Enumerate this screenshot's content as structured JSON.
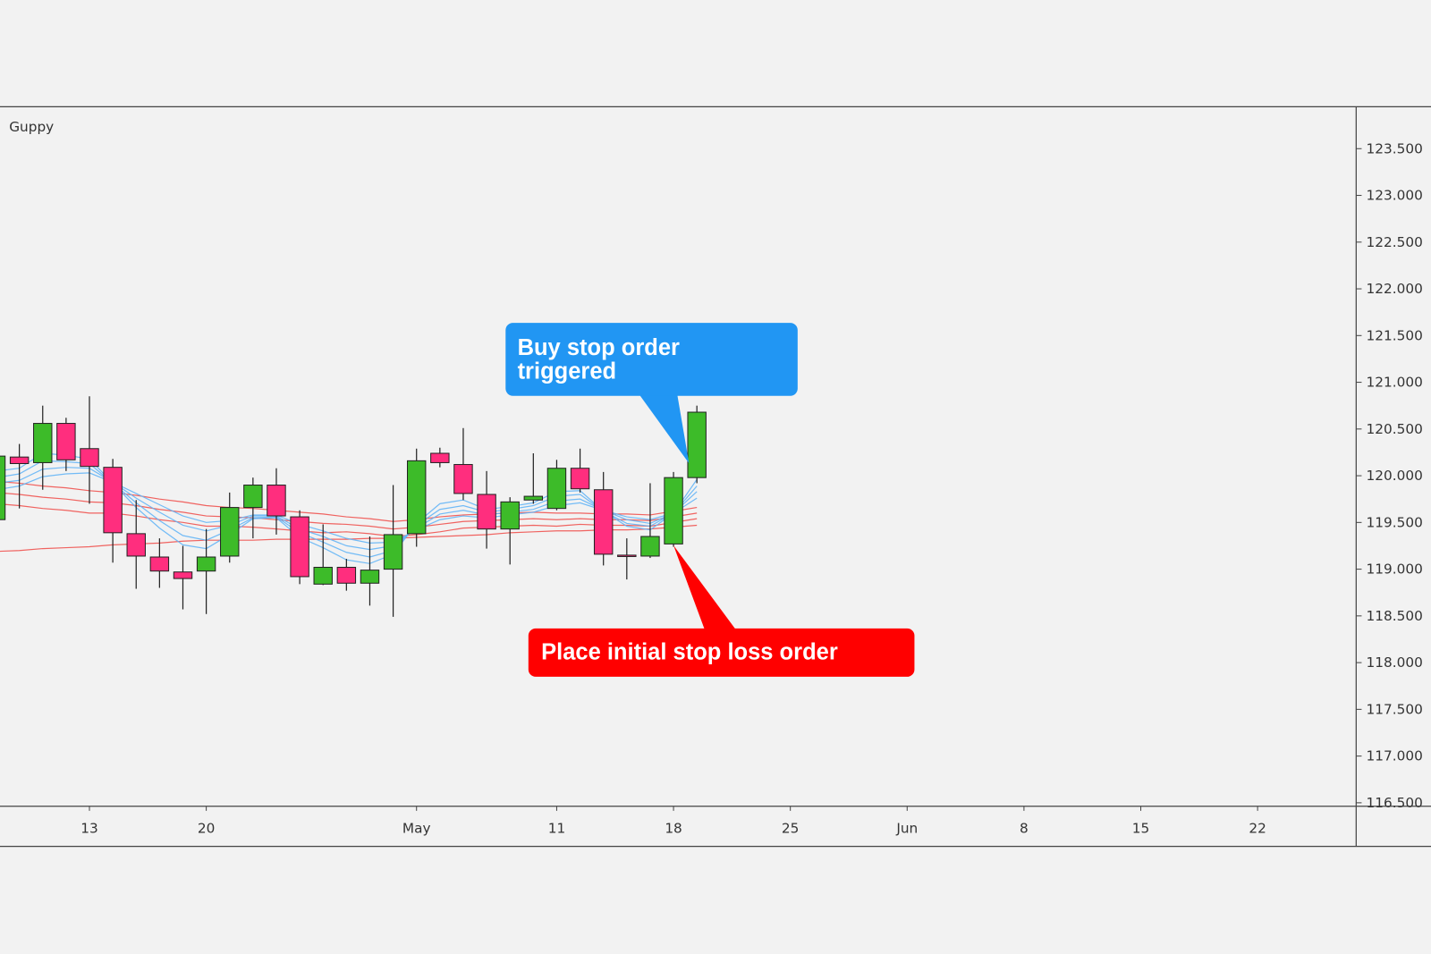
{
  "chart_data": {
    "type": "candlestick",
    "indicator_label": "Guppy",
    "categories": [
      null,
      null,
      null,
      null,
      "13",
      null,
      null,
      null,
      null,
      "20",
      null,
      null,
      null,
      null,
      null,
      null,
      null,
      null,
      "May",
      null,
      null,
      null,
      null,
      null,
      "11",
      null,
      null,
      null,
      null,
      "18",
      null,
      null,
      null,
      null,
      "25",
      null,
      null,
      null,
      null,
      "Jun",
      null,
      null,
      null,
      null,
      "8",
      null,
      null,
      null,
      null,
      "15",
      null,
      null,
      null,
      null,
      "22"
    ],
    "open": [
      119.53,
      120.2,
      120.14,
      120.56,
      120.29,
      120.09,
      119.38,
      119.13,
      118.97,
      118.98,
      119.14,
      119.66,
      119.9,
      119.56,
      118.84,
      119.02,
      118.85,
      119.0,
      119.38,
      120.24,
      120.12,
      119.8,
      119.43,
      119.74,
      119.65,
      120.08,
      119.85,
      119.15,
      119.14,
      119.27,
      119.98,
      null,
      null,
      null,
      null,
      null,
      null,
      null,
      null,
      null,
      null,
      null,
      null,
      null,
      null,
      null,
      null,
      null,
      null,
      null,
      null,
      null,
      null,
      null,
      null
    ],
    "high": [
      120.24,
      120.34,
      120.75,
      120.62,
      120.85,
      120.18,
      119.74,
      119.33,
      119.25,
      119.43,
      119.82,
      119.98,
      120.08,
      119.63,
      119.48,
      119.11,
      119.35,
      119.9,
      120.29,
      120.3,
      120.51,
      120.05,
      119.77,
      120.24,
      120.17,
      120.29,
      120.04,
      119.33,
      119.92,
      120.04,
      120.75,
      null,
      null,
      null,
      null,
      null,
      null,
      null,
      null,
      null,
      null,
      null,
      null,
      null,
      null,
      null,
      null,
      null,
      null,
      null,
      null,
      null,
      null,
      null,
      null
    ],
    "low": [
      119.5,
      119.65,
      119.85,
      120.05,
      119.7,
      119.07,
      118.79,
      118.8,
      118.57,
      118.52,
      119.07,
      119.33,
      119.37,
      118.84,
      118.83,
      118.77,
      118.61,
      118.49,
      119.24,
      120.09,
      119.74,
      119.22,
      119.05,
      119.7,
      119.63,
      119.82,
      119.04,
      118.89,
      119.12,
      119.24,
      119.92,
      null,
      null,
      null,
      null,
      null,
      null,
      null,
      null,
      null,
      null,
      null,
      null,
      null,
      null,
      null,
      null,
      null,
      null,
      null,
      null,
      null,
      null,
      null,
      null
    ],
    "close": [
      120.21,
      120.13,
      120.56,
      120.17,
      120.1,
      119.39,
      119.14,
      118.98,
      118.9,
      119.13,
      119.66,
      119.9,
      119.57,
      118.92,
      119.02,
      118.85,
      118.99,
      119.37,
      120.16,
      120.14,
      119.81,
      119.43,
      119.72,
      119.78,
      120.08,
      119.86,
      119.16,
      119.14,
      119.35,
      119.98,
      120.68,
      null,
      null,
      null,
      null,
      null,
      null,
      null,
      null,
      null,
      null,
      null,
      null,
      null,
      null,
      null,
      null,
      null,
      null,
      null,
      null,
      null,
      null,
      null,
      null
    ],
    "up_color": "#3dbb29",
    "down_color": "#ff2e7e",
    "series": [
      {
        "color": "#ef5350",
        "values": [
          119.94,
          119.92,
          119.89,
          119.87,
          119.84,
          119.82,
          119.79,
          119.75,
          119.72,
          119.68,
          119.66,
          119.65,
          119.63,
          119.61,
          119.59,
          119.56,
          119.54,
          119.51,
          119.53,
          119.56,
          119.58,
          119.59,
          119.6,
          119.61,
          119.6,
          119.6,
          119.59,
          119.59,
          119.58,
          119.62,
          119.66,
          null,
          null,
          null,
          null,
          null,
          null,
          null,
          null,
          null,
          null,
          null,
          null,
          null,
          null,
          null,
          null,
          null,
          null,
          null,
          null,
          null,
          null,
          null,
          null
        ]
      },
      {
        "color": "#ef5350",
        "values": [
          119.82,
          119.8,
          119.77,
          119.75,
          119.72,
          119.71,
          119.68,
          119.64,
          119.61,
          119.57,
          119.56,
          119.55,
          119.53,
          119.51,
          119.49,
          119.48,
          119.46,
          119.43,
          119.45,
          119.48,
          119.51,
          119.52,
          119.53,
          119.54,
          119.53,
          119.54,
          119.53,
          119.53,
          119.52,
          119.56,
          119.6,
          null,
          null,
          null,
          null,
          null,
          null,
          null,
          null,
          null,
          null,
          null,
          null,
          null,
          null,
          null,
          null,
          null,
          null,
          null,
          null,
          null,
          null,
          null,
          null
        ]
      },
      {
        "color": "#ef5350",
        "values": [
          119.7,
          119.68,
          119.65,
          119.63,
          119.6,
          119.6,
          119.57,
          119.53,
          119.5,
          119.46,
          119.46,
          119.45,
          119.43,
          119.41,
          119.39,
          119.4,
          119.38,
          119.35,
          119.37,
          119.4,
          119.44,
          119.45,
          119.46,
          119.47,
          119.46,
          119.48,
          119.47,
          119.47,
          119.46,
          119.5,
          119.54,
          null,
          null,
          null,
          null,
          null,
          null,
          null,
          null,
          null,
          null,
          null,
          null,
          null,
          null,
          null,
          null,
          null,
          null,
          null,
          null,
          null,
          null,
          null,
          null
        ]
      },
      {
        "color": "#ef5350",
        "values": [
          119.19,
          119.2,
          119.22,
          119.23,
          119.24,
          119.26,
          119.27,
          119.28,
          119.3,
          119.31,
          119.31,
          119.31,
          119.32,
          119.32,
          119.32,
          119.32,
          119.33,
          119.33,
          119.34,
          119.35,
          119.36,
          119.37,
          119.39,
          119.4,
          119.41,
          119.41,
          119.42,
          119.42,
          119.43,
          119.45,
          119.47,
          null,
          null,
          null,
          null,
          null,
          null,
          null,
          null,
          null,
          null,
          null,
          null,
          null,
          null,
          null,
          null,
          null,
          null,
          null,
          null,
          null,
          null,
          null,
          null
        ]
      },
      {
        "color": "#64b5f6",
        "values": [
          120.05,
          120.08,
          120.24,
          120.22,
          120.18,
          119.92,
          119.66,
          119.44,
          119.26,
          119.22,
          119.37,
          119.54,
          119.55,
          119.34,
          119.23,
          119.1,
          119.06,
          119.16,
          119.49,
          119.7,
          119.74,
          119.64,
          119.67,
          119.71,
          119.83,
          119.84,
          119.62,
          119.46,
          119.42,
          119.6,
          119.96,
          null,
          null,
          null,
          null,
          null,
          null,
          null,
          null,
          null,
          null,
          null,
          null,
          null,
          null,
          null,
          null,
          null,
          null,
          null,
          null,
          null,
          null,
          null,
          null
        ]
      },
      {
        "color": "#64b5f6",
        "values": [
          119.98,
          120.02,
          120.16,
          120.15,
          120.13,
          119.92,
          119.71,
          119.52,
          119.36,
          119.31,
          119.42,
          119.55,
          119.56,
          119.39,
          119.29,
          119.18,
          119.13,
          119.2,
          119.47,
          119.64,
          119.68,
          119.61,
          119.64,
          119.68,
          119.78,
          119.8,
          119.62,
          119.49,
          119.46,
          119.6,
          119.89,
          null,
          null,
          null,
          null,
          null,
          null,
          null,
          null,
          null,
          null,
          null,
          null,
          null,
          null,
          null,
          null,
          null,
          null,
          null,
          null,
          null,
          null,
          null,
          null
        ]
      },
      {
        "color": "#64b5f6",
        "values": [
          119.92,
          119.95,
          120.07,
          120.09,
          120.08,
          119.93,
          119.76,
          119.61,
          119.47,
          119.41,
          119.47,
          119.57,
          119.57,
          119.43,
          119.35,
          119.25,
          119.21,
          119.25,
          119.44,
          119.59,
          119.63,
          119.58,
          119.61,
          119.64,
          119.73,
          119.75,
          119.63,
          119.53,
          119.49,
          119.6,
          119.83,
          null,
          null,
          null,
          null,
          null,
          null,
          null,
          null,
          null,
          null,
          null,
          null,
          null,
          null,
          null,
          null,
          null,
          null,
          null,
          null,
          null,
          null,
          null,
          null
        ]
      },
      {
        "color": "#64b5f6",
        "values": [
          119.85,
          119.89,
          119.99,
          120.02,
          120.03,
          119.93,
          119.81,
          119.69,
          119.57,
          119.5,
          119.52,
          119.58,
          119.58,
          119.48,
          119.41,
          119.33,
          119.28,
          119.29,
          119.42,
          119.53,
          119.57,
          119.55,
          119.58,
          119.61,
          119.68,
          119.71,
          119.63,
          119.56,
          119.53,
          119.6,
          119.76,
          null,
          null,
          null,
          null,
          null,
          null,
          null,
          null,
          null,
          null,
          null,
          null,
          null,
          null,
          null,
          null,
          null,
          null,
          null,
          null,
          null,
          null,
          null,
          null
        ]
      }
    ],
    "ylim": [
      116.463,
      123.949
    ],
    "yticks": [
      {
        "value": 116.5,
        "label": "116.500"
      },
      {
        "value": 117,
        "label": "117.000"
      },
      {
        "value": 117.5,
        "label": "117.500"
      },
      {
        "value": 118,
        "label": "118.000"
      },
      {
        "value": 118.5,
        "label": "118.500"
      },
      {
        "value": 119,
        "label": "119.000"
      },
      {
        "value": 119.5,
        "label": "119.500"
      },
      {
        "value": 120,
        "label": "120.000"
      },
      {
        "value": 120.5,
        "label": "120.500"
      },
      {
        "value": 121,
        "label": "121.000"
      },
      {
        "value": 121.5,
        "label": "121.500"
      },
      {
        "value": 122,
        "label": "122.000"
      },
      {
        "value": 122.5,
        "label": "122.500"
      },
      {
        "value": 123,
        "label": "123.000"
      },
      {
        "value": 123.5,
        "label": "123.500"
      }
    ],
    "annotations": [
      {
        "lines": [
          "Buy stop order",
          "triggered"
        ]
      },
      {
        "lines": [
          "Place initial stop loss order"
        ]
      }
    ]
  }
}
